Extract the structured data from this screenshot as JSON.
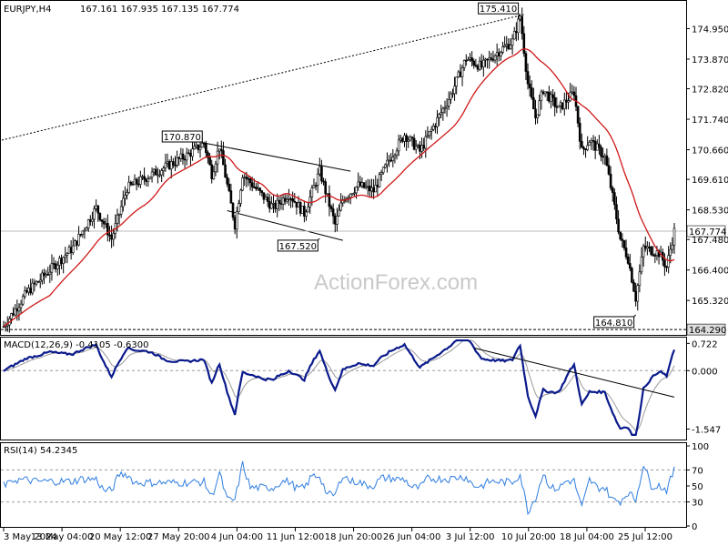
{
  "header": {
    "symbol": "EURJPY,H4",
    "ohlc": "167.161 167.935 167.135 167.774"
  },
  "watermark": "ActionForex.com",
  "colors": {
    "price": "#000000",
    "ma": "#d01818",
    "macd": "#0a1a8c",
    "signal": "#9a9a9a",
    "rsi": "#2f7de0",
    "grid_dash": "#999999"
  },
  "chart_data": [
    {
      "type": "candlestick",
      "title": "EURJPY,H4",
      "ylim": [
        164.1,
        175.9
      ],
      "y_ticks": [
        "174.950",
        "173.870",
        "172.820",
        "171.740",
        "170.660",
        "169.610",
        "168.530",
        "167.480",
        "166.400",
        "165.320"
      ],
      "current_price_label": "167.774",
      "low_level_label": "164.290",
      "x_ticks": [
        "3 May 2024",
        "13 May 04:00",
        "20 May 12:00",
        "27 May 20:00",
        "4 Jun 04:00",
        "11 Jun 12:00",
        "18 Jun 20:00",
        "26 Jun 04:00",
        "3 Jul 12:00",
        "10 Jul 20:00",
        "18 Jul 04:00",
        "25 Jul 12:00"
      ],
      "close_path": [
        [
          0,
          164.4
        ],
        [
          3,
          165.6
        ],
        [
          6,
          166.4
        ],
        [
          9,
          167.2
        ],
        [
          12,
          168.6
        ],
        [
          14,
          167.5
        ],
        [
          16,
          169.3
        ],
        [
          18,
          169.6
        ],
        [
          20,
          169.9
        ],
        [
          22,
          170.2
        ],
        [
          24,
          170.5
        ],
        [
          26,
          170.9
        ],
        [
          27,
          169.8
        ],
        [
          28,
          170.8
        ],
        [
          30,
          168.0
        ],
        [
          31,
          169.8
        ],
        [
          33,
          169.2
        ],
        [
          35,
          168.6
        ],
        [
          37,
          169.1
        ],
        [
          39,
          168.4
        ],
        [
          41,
          169.9
        ],
        [
          43,
          168.0
        ],
        [
          44,
          168.9
        ],
        [
          46,
          169.4
        ],
        [
          48,
          169.2
        ],
        [
          50,
          170.3
        ],
        [
          52,
          171.2
        ],
        [
          54,
          170.6
        ],
        [
          56,
          171.6
        ],
        [
          58,
          172.6
        ],
        [
          60,
          173.9
        ],
        [
          62,
          173.6
        ],
        [
          64,
          174.1
        ],
        [
          66,
          174.5
        ],
        [
          67,
          175.4
        ],
        [
          68,
          173.0
        ],
        [
          69,
          171.8
        ],
        [
          70,
          172.8
        ],
        [
          72,
          172.1
        ],
        [
          74,
          172.7
        ],
        [
          75,
          170.6
        ],
        [
          76,
          171.0
        ],
        [
          78,
          170.4
        ],
        [
          79,
          169.0
        ],
        [
          80,
          167.5
        ],
        [
          81,
          166.8
        ],
        [
          82,
          165.4
        ],
        [
          83,
          167.2
        ],
        [
          85,
          167.0
        ],
        [
          86,
          166.5
        ],
        [
          87,
          167.77
        ]
      ],
      "annotations": [
        {
          "label": "175.410",
          "x": 67,
          "y": 175.41
        },
        {
          "label": "170.870",
          "x": 26,
          "y": 170.87
        },
        {
          "label": "167.520",
          "x": 41,
          "y": 167.52
        },
        {
          "label": "164.810",
          "x": 82,
          "y": 164.81
        }
      ]
    },
    {
      "type": "line",
      "title": "MACD(12,26,9) -0.4105 -0.6300",
      "y_ticks": [
        "0.722",
        "0.000",
        "-1.547"
      ],
      "ylim": [
        -1.8,
        0.85
      ]
    },
    {
      "type": "line",
      "title": "RSI(14) 54.2345",
      "y_ticks": [
        "100",
        "70",
        "50",
        "30",
        "0"
      ],
      "ylim": [
        0,
        100
      ]
    }
  ]
}
